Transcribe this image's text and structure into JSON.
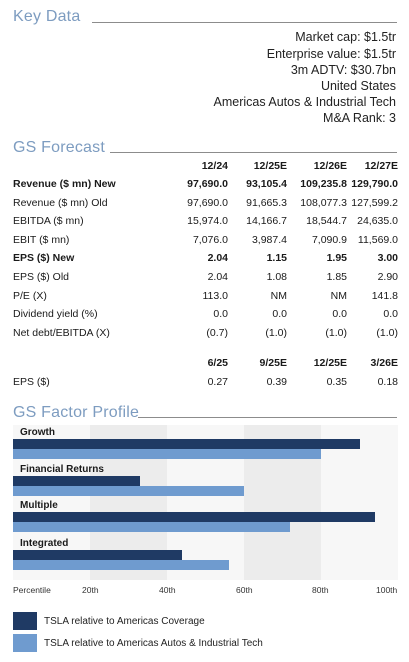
{
  "key_data": {
    "title": "Key Data",
    "lines": [
      "Market cap: $1.5tr",
      "Enterprise value: $1.5tr",
      "3m ADTV: $30.7bn",
      "United States",
      "Americas Autos & Industrial Tech",
      "M&A Rank: 3"
    ]
  },
  "forecast": {
    "title": "GS Forecast",
    "columns": [
      "12/24",
      "12/25E",
      "12/26E",
      "12/27E"
    ],
    "rows": [
      {
        "label": "Revenue ($ mn) New",
        "bold": true,
        "values": [
          "97,690.0",
          "93,105.4",
          "109,235.8",
          "129,790.0"
        ]
      },
      {
        "label": "Revenue ($ mn) Old",
        "bold": false,
        "values": [
          "97,690.0",
          "91,665.3",
          "108,077.3",
          "127,599.2"
        ]
      },
      {
        "label": "EBITDA ($ mn)",
        "bold": false,
        "values": [
          "15,974.0",
          "14,166.7",
          "18,544.7",
          "24,635.0"
        ]
      },
      {
        "label": "EBIT ($ mn)",
        "bold": false,
        "values": [
          "7,076.0",
          "3,987.4",
          "7,090.9",
          "11,569.0"
        ]
      },
      {
        "label": "EPS ($) New",
        "bold": true,
        "values": [
          "2.04",
          "1.15",
          "1.95",
          "3.00"
        ]
      },
      {
        "label": "EPS ($) Old",
        "bold": false,
        "values": [
          "2.04",
          "1.08",
          "1.85",
          "2.90"
        ]
      },
      {
        "label": "P/E (X)",
        "bold": false,
        "values": [
          "113.0",
          "NM",
          "NM",
          "141.8"
        ]
      },
      {
        "label": "Dividend yield (%)",
        "bold": false,
        "values": [
          "0.0",
          "0.0",
          "0.0",
          "0.0"
        ]
      },
      {
        "label": "Net debt/EBITDA (X)",
        "bold": false,
        "values": [
          "(0.7)",
          "(1.0)",
          "(1.0)",
          "(1.0)"
        ]
      }
    ],
    "eps_columns": [
      "6/25",
      "9/25E",
      "12/25E",
      "3/26E"
    ],
    "eps_row": {
      "label": "EPS ($)",
      "values": [
        "0.27",
        "0.39",
        "0.35",
        "0.18"
      ]
    }
  },
  "factor_profile": {
    "title": "GS Factor Profile",
    "percentile_label": "Percentile",
    "ticks": [
      "20th",
      "40th",
      "60th",
      "80th",
      "100th"
    ],
    "colors": {
      "coverage": "#1f3a64",
      "sector": "#6f9bcf",
      "band_light": "#ececec",
      "band_white": "#f7f7f7"
    },
    "factors": [
      {
        "name": "Growth",
        "coverage_pct": 90,
        "sector_pct": 80
      },
      {
        "name": "Financial Returns",
        "coverage_pct": 33,
        "sector_pct": 60
      },
      {
        "name": "Multiple",
        "coverage_pct": 94,
        "sector_pct": 72
      },
      {
        "name": "Integrated",
        "coverage_pct": 44,
        "sector_pct": 56
      }
    ],
    "legend": [
      "TSLA relative to Americas Coverage",
      "TSLA relative to Americas Autos & Industrial Tech"
    ]
  }
}
